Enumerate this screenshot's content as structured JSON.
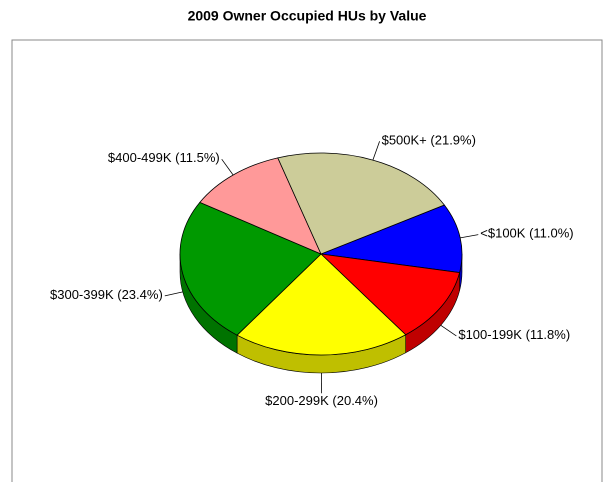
{
  "chart_data": {
    "type": "pie",
    "title": "2009 Owner Occupied HUs by Value",
    "categories": [
      "<$100K",
      "$100-199K",
      "$200-299K",
      "$300-399K",
      "$400-499K",
      "$500K+"
    ],
    "values": [
      11.0,
      11.8,
      20.4,
      23.4,
      11.5,
      21.9
    ],
    "value_labels": [
      "(11.0%)",
      "(11.8%)",
      "(20.4%)",
      "(23.4%)",
      "(11.5%)",
      "(21.9%)"
    ],
    "colors": [
      "#0000ff",
      "#ff0000",
      "#ffff00",
      "#009900",
      "#ff9999",
      "#cccc99"
    ]
  }
}
